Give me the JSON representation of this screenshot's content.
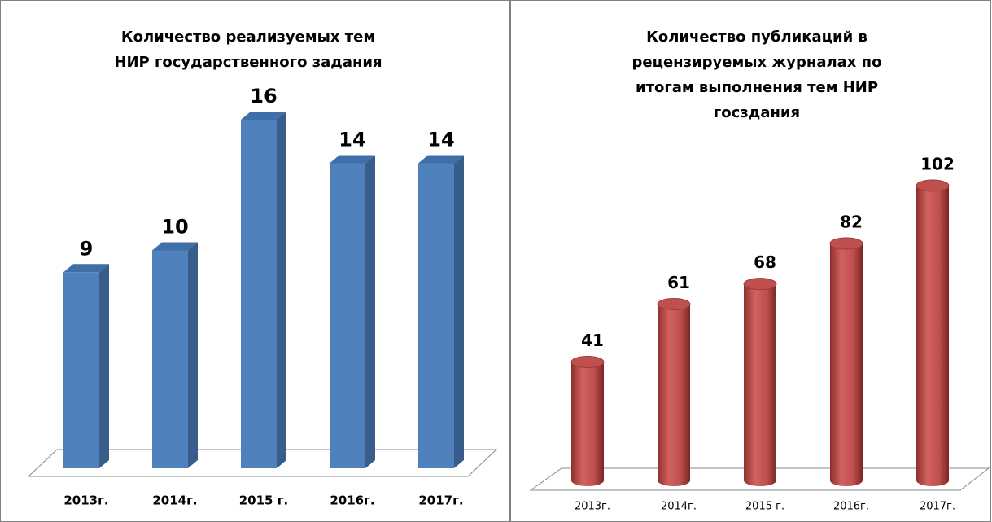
{
  "chart_data": [
    {
      "type": "bar3d",
      "title": "Количество реализуемых тем НИР государственного задания",
      "categories": [
        "2013г.",
        "2014г.",
        "2015 г.",
        "2016г.",
        "2017г."
      ],
      "values": [
        9,
        10,
        16,
        14,
        14
      ],
      "color": "#4f81bd"
    },
    {
      "type": "cylinder",
      "title": "Количество публикаций в рецензируемых журналах по итогам выполнения тем НИР госздания",
      "categories": [
        "2013г.",
        "2014г.",
        "2015 г.",
        "2016г.",
        "2017г."
      ],
      "values": [
        41,
        61,
        68,
        82,
        102
      ],
      "color": "#c0504d"
    }
  ]
}
